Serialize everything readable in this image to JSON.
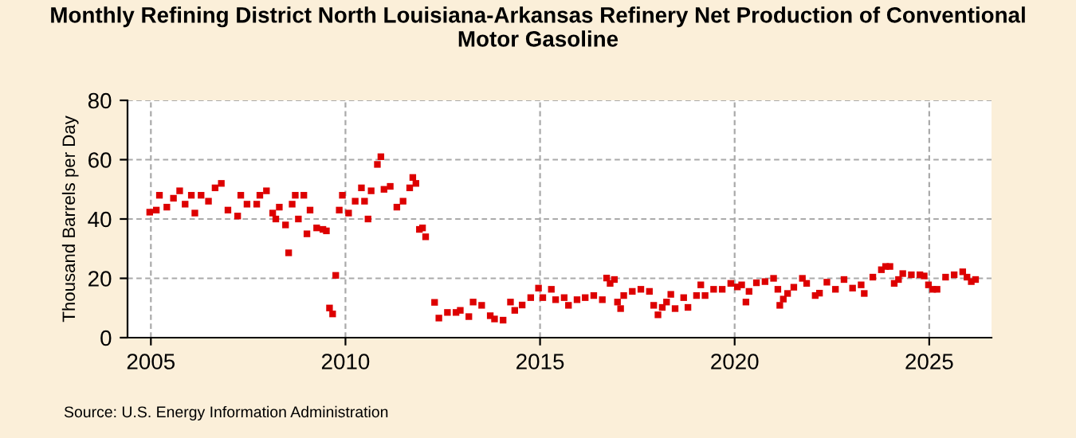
{
  "chart_data": {
    "type": "scatter",
    "title": "Monthly Refining District North Louisiana-Arkansas Refinery Net Production of Conventional\nMotor Gasoline",
    "ylabel": "Thousand Barrels per Day",
    "annotations": [
      "Source: U.S. Energy Information Administration"
    ],
    "series": [
      {
        "color": "#dd0000",
        "x": [
          2004.97,
          2005.14,
          2005.22,
          2005.41,
          2005.58,
          2005.74,
          2005.88,
          2006.04,
          2006.13,
          2006.29,
          2006.48,
          2006.65,
          2006.81,
          2006.98,
          2007.23,
          2007.31,
          2007.47,
          2007.72,
          2007.8,
          2007.97,
          2008.13,
          2008.21,
          2008.3,
          2008.46,
          2008.54,
          2008.63,
          2008.71,
          2008.79,
          2008.93,
          2009.01,
          2009.09,
          2009.26,
          2009.42,
          2009.51,
          2009.59,
          2009.67,
          2009.75,
          2009.84,
          2009.92,
          2010.08,
          2010.25,
          2010.41,
          2010.49,
          2010.58,
          2010.66,
          2010.82,
          2010.91,
          2010.99,
          2011.15,
          2011.32,
          2011.48,
          2011.65,
          2011.73,
          2011.81,
          2011.9,
          2011.98,
          2012.06,
          2012.29,
          2012.4,
          2012.62,
          2012.84,
          2012.95,
          2013.17,
          2013.28,
          2013.5,
          2013.72,
          2013.83,
          2014.05,
          2014.24,
          2014.35,
          2014.54,
          2014.76,
          2014.96,
          2015.07,
          2015.29,
          2015.4,
          2015.62,
          2015.73,
          2015.95,
          2016.16,
          2016.38,
          2016.6,
          2016.71,
          2016.8,
          2016.91,
          2016.99,
          2017.07,
          2017.15,
          2017.37,
          2017.59,
          2017.81,
          2017.92,
          2018.03,
          2018.14,
          2018.25,
          2018.36,
          2018.47,
          2018.69,
          2018.8,
          2019.02,
          2019.13,
          2019.24,
          2019.46,
          2019.68,
          2019.9,
          2020.07,
          2020.18,
          2020.29,
          2020.37,
          2020.56,
          2020.78,
          2021.0,
          2021.11,
          2021.16,
          2021.25,
          2021.36,
          2021.52,
          2021.74,
          2021.85,
          2022.07,
          2022.18,
          2022.37,
          2022.59,
          2022.81,
          2023.03,
          2023.25,
          2023.33,
          2023.55,
          2023.77,
          2023.88,
          2023.99,
          2024.1,
          2024.21,
          2024.32,
          2024.54,
          2024.76,
          2024.87,
          2024.98,
          2025.09,
          2025.2,
          2025.42,
          2025.64,
          2025.86,
          2025.97,
          2026.08,
          2026.19
        ],
        "values": [
          42.3,
          43,
          48,
          44,
          47,
          49.5,
          45,
          48,
          42,
          48,
          46,
          50.5,
          52,
          43,
          41,
          48,
          45,
          45,
          48,
          49.5,
          42,
          40,
          44,
          38,
          28.6,
          45,
          48,
          40,
          48,
          35,
          43,
          37,
          36.5,
          36,
          10,
          8,
          21,
          43,
          48,
          42,
          46,
          50.5,
          46,
          40,
          49.5,
          58.4,
          61,
          50,
          51,
          44,
          46,
          50.5,
          54,
          52,
          36.5,
          37,
          34,
          11.9,
          6.6,
          8.5,
          8.5,
          9.2,
          7.1,
          12,
          10.9,
          7.4,
          6.3,
          5.9,
          12,
          9.2,
          11,
          13.5,
          16.7,
          13.5,
          16.3,
          12.8,
          13.5,
          10.9,
          12.8,
          13.5,
          14.2,
          12.8,
          20.1,
          18.3,
          19.6,
          12,
          9.8,
          14.2,
          15.6,
          16.3,
          15.6,
          10.9,
          7.7,
          10.2,
          12,
          14.6,
          9.8,
          13.5,
          10.2,
          14.2,
          17.8,
          14.2,
          16.3,
          16.3,
          18.3,
          17.1,
          17.8,
          12,
          15.6,
          18.5,
          18.9,
          20,
          16.3,
          10.9,
          13,
          14.9,
          17,
          20,
          18.3,
          14.2,
          15,
          18.7,
          16.3,
          19.6,
          16.7,
          17.8,
          14.9,
          20.4,
          22.9,
          24,
          24,
          18.3,
          19.6,
          21.6,
          21.2,
          21.2,
          20.8,
          17.8,
          16.3,
          16.3,
          20.4,
          21.2,
          22.2,
          20.4,
          18.9,
          19.6
        ]
      }
    ],
    "xlim": [
      2004.4,
      2026.6
    ],
    "xticks": [
      2005,
      2010,
      2015,
      2020,
      2025
    ],
    "ylim": [
      0,
      80
    ],
    "yticks": [
      0,
      20,
      40,
      60,
      80
    ],
    "grid": true,
    "marker": "square",
    "legend": false
  }
}
